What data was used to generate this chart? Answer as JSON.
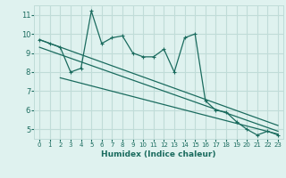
{
  "title": "",
  "xlabel": "Humidex (Indice chaleur)",
  "background_color": "#dff2ef",
  "grid_color": "#c0dcd8",
  "line_color": "#1a6b5e",
  "xlim": [
    -0.5,
    23.5
  ],
  "ylim": [
    4.5,
    11.5
  ],
  "yticks": [
    5,
    6,
    7,
    8,
    9,
    10,
    11
  ],
  "xticks": [
    0,
    1,
    2,
    3,
    4,
    5,
    6,
    7,
    8,
    9,
    10,
    11,
    12,
    13,
    14,
    15,
    16,
    17,
    18,
    19,
    20,
    21,
    22,
    23
  ],
  "series1_x": [
    0,
    1,
    2,
    3,
    4,
    5,
    6,
    7,
    8,
    9,
    10,
    11,
    12,
    13,
    14,
    15,
    16,
    17,
    18,
    19,
    20,
    21,
    22,
    23
  ],
  "series1_y": [
    9.7,
    9.5,
    9.3,
    8.0,
    8.2,
    11.2,
    9.5,
    9.8,
    9.9,
    9.0,
    8.8,
    8.8,
    9.2,
    8.0,
    9.8,
    10.0,
    6.5,
    6.0,
    5.9,
    5.4,
    5.0,
    4.7,
    4.9,
    4.7
  ],
  "trend1_x": [
    0,
    23
  ],
  "trend1_y": [
    9.7,
    5.2
  ],
  "trend2_x": [
    0,
    23
  ],
  "trend2_y": [
    9.3,
    4.9
  ],
  "trend3_x": [
    2,
    23
  ],
  "trend3_y": [
    7.7,
    4.75
  ]
}
